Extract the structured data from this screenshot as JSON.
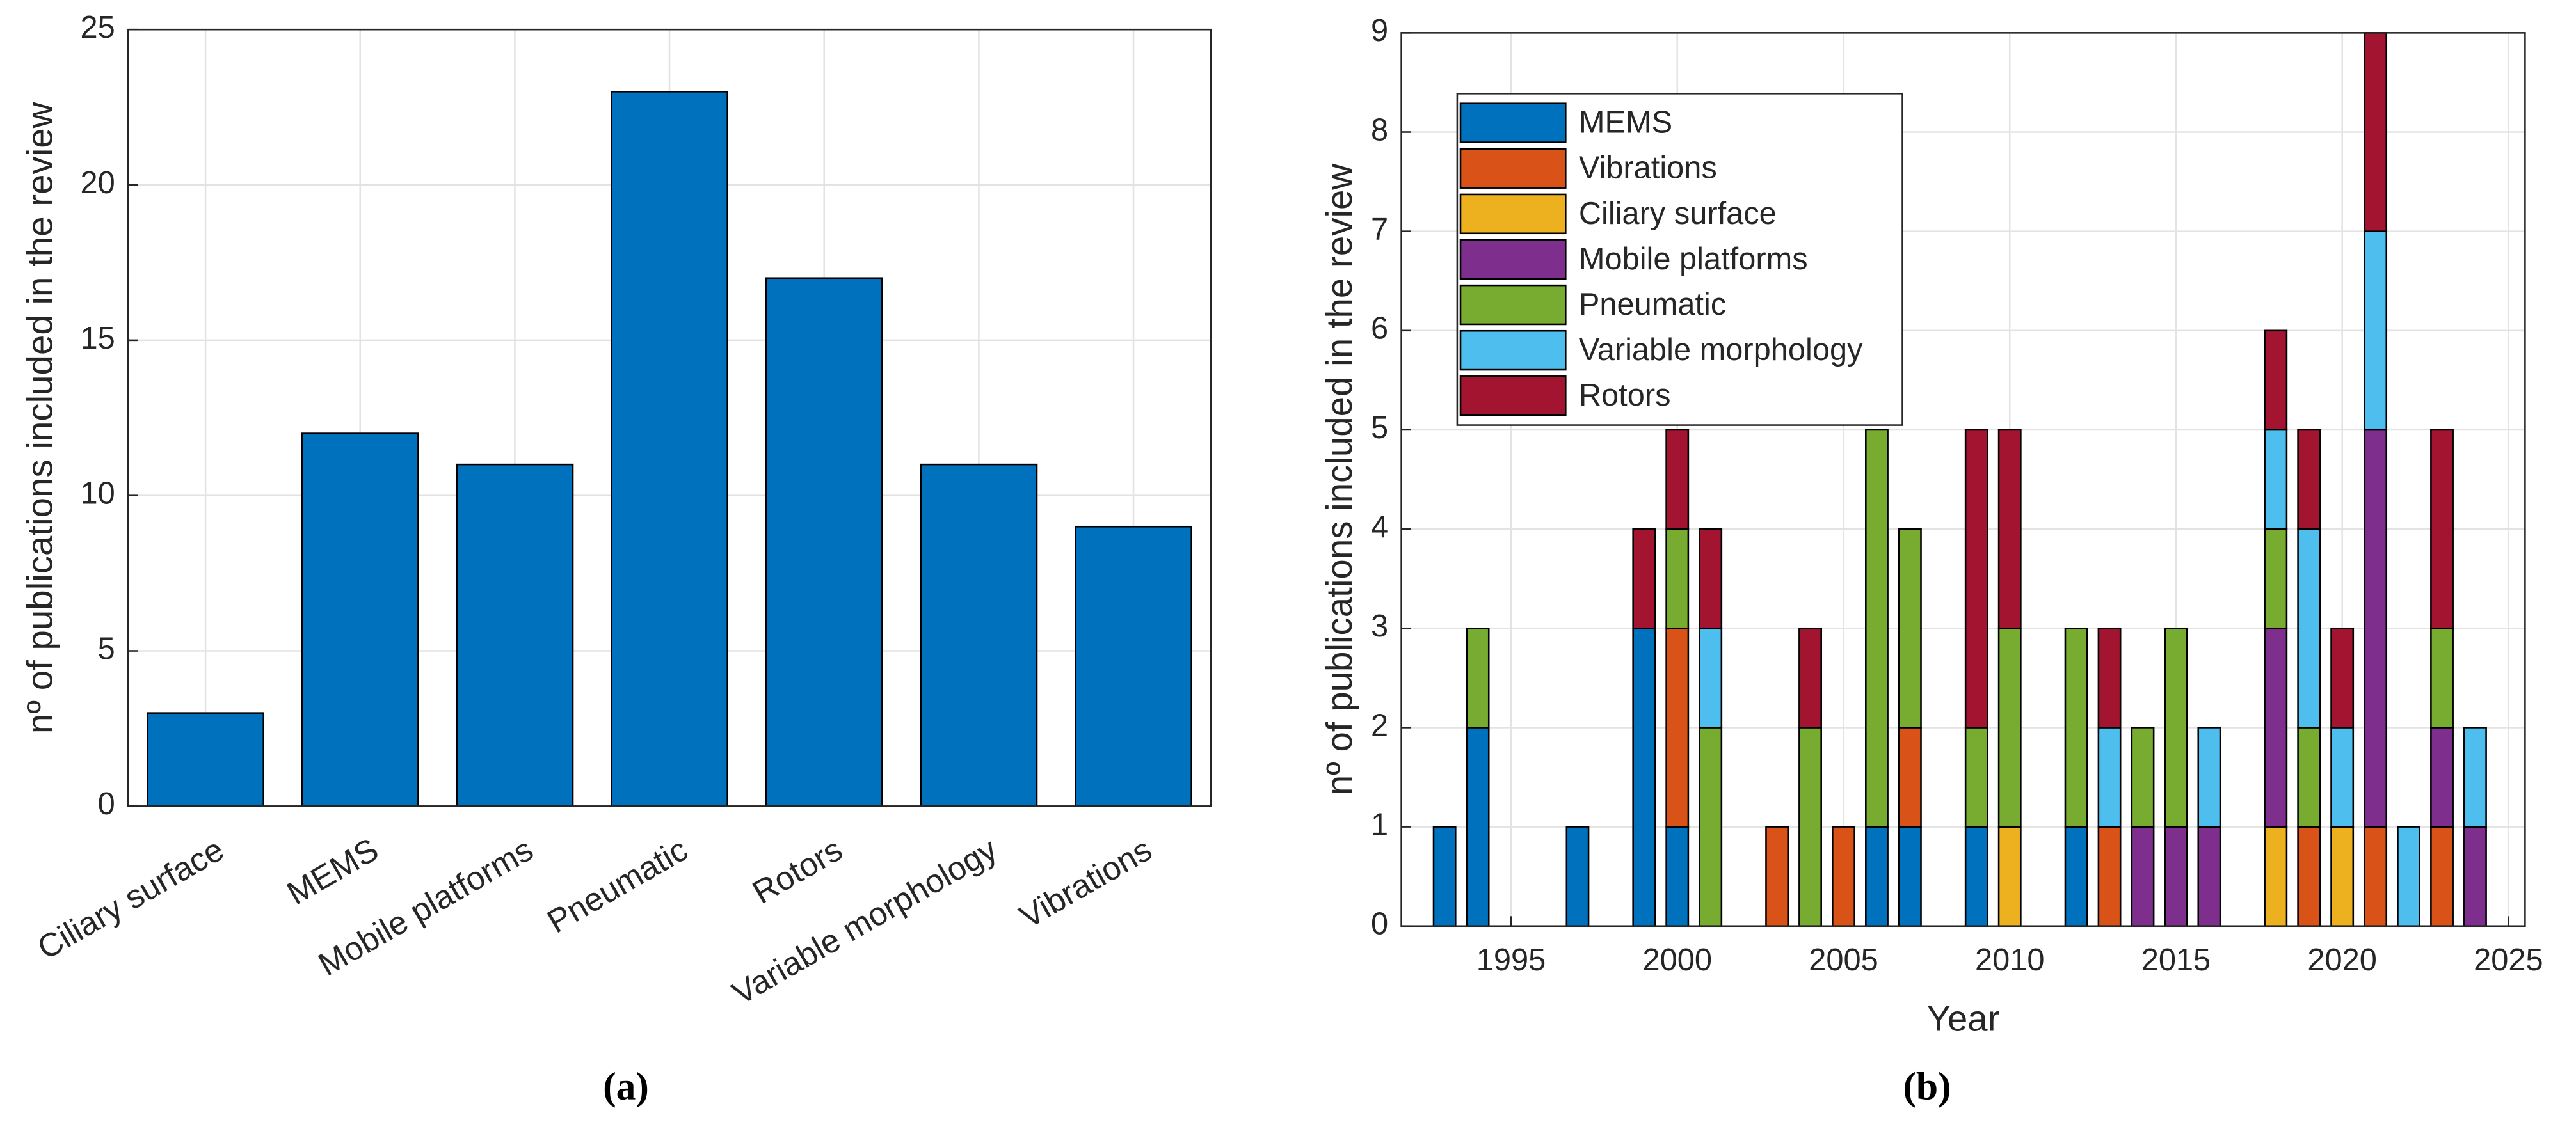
{
  "chart_data": [
    {
      "type": "bar",
      "ylabel": "nº of publications included in the review",
      "caption": "(a)",
      "categories": [
        "Ciliary surface",
        "MEMS",
        "Mobile platforms",
        "Pneumatic",
        "Rotors",
        "Variable morphology",
        "Vibrations"
      ],
      "values": [
        3,
        12,
        11,
        23,
        17,
        11,
        9
      ],
      "color": "#0072bd",
      "ylim": [
        0,
        25
      ],
      "yticks": [
        0,
        5,
        10,
        15,
        20,
        25
      ],
      "grid": true
    },
    {
      "type": "stacked_bar",
      "xlabel": "Year",
      "ylabel": "nº of publications included in the review",
      "caption": "(b)",
      "x": [
        1993,
        1994,
        1997,
        1999,
        2000,
        2001,
        2003,
        2004,
        2005,
        2006,
        2007,
        2009,
        2010,
        2012,
        2013,
        2014,
        2015,
        2016,
        2018,
        2019,
        2020,
        2021,
        2022,
        2023,
        2024
      ],
      "series": [
        {
          "name": "MEMS",
          "color": "#0072bd",
          "values": [
            1,
            2,
            1,
            3,
            1,
            0,
            0,
            0,
            0,
            1,
            1,
            1,
            0,
            1,
            0,
            0,
            0,
            0,
            0,
            0,
            0,
            0,
            0,
            0,
            0
          ]
        },
        {
          "name": "Vibrations",
          "color": "#d95319",
          "values": [
            0,
            0,
            0,
            0,
            2,
            0,
            1,
            0,
            1,
            0,
            1,
            0,
            0,
            0,
            1,
            0,
            0,
            0,
            0,
            1,
            0,
            1,
            0,
            1,
            0
          ]
        },
        {
          "name": "Ciliary surface",
          "color": "#edb120",
          "values": [
            0,
            0,
            0,
            0,
            0,
            0,
            0,
            0,
            0,
            0,
            0,
            0,
            1,
            0,
            0,
            0,
            0,
            0,
            1,
            0,
            1,
            0,
            0,
            0,
            0
          ]
        },
        {
          "name": "Mobile platforms",
          "color": "#7e2f8e",
          "values": [
            0,
            0,
            0,
            0,
            0,
            0,
            0,
            0,
            0,
            0,
            0,
            0,
            0,
            0,
            0,
            1,
            1,
            1,
            2,
            0,
            0,
            4,
            0,
            1,
            1
          ]
        },
        {
          "name": "Pneumatic",
          "color": "#77ac30",
          "values": [
            0,
            1,
            0,
            0,
            1,
            2,
            0,
            2,
            0,
            4,
            2,
            1,
            2,
            2,
            0,
            1,
            2,
            0,
            1,
            1,
            0,
            0,
            0,
            1,
            0
          ]
        },
        {
          "name": "Variable morphology",
          "color": "#4dbeee",
          "values": [
            0,
            0,
            0,
            0,
            0,
            1,
            0,
            0,
            0,
            0,
            0,
            0,
            0,
            0,
            1,
            0,
            0,
            1,
            1,
            2,
            1,
            2,
            1,
            0,
            1
          ]
        },
        {
          "name": "Rotors",
          "color": "#a2142f",
          "values": [
            0,
            0,
            0,
            1,
            1,
            1,
            0,
            1,
            0,
            0,
            0,
            3,
            2,
            0,
            1,
            0,
            0,
            0,
            1,
            1,
            1,
            2,
            0,
            2,
            0
          ]
        }
      ],
      "xlim": [
        1991.7,
        2025.5
      ],
      "xticks": [
        1995,
        2000,
        2005,
        2010,
        2015,
        2020,
        2025
      ],
      "ylim": [
        0,
        9
      ],
      "yticks": [
        0,
        1,
        2,
        3,
        4,
        5,
        6,
        7,
        8,
        9
      ],
      "grid": true,
      "legend": "northwest"
    }
  ]
}
